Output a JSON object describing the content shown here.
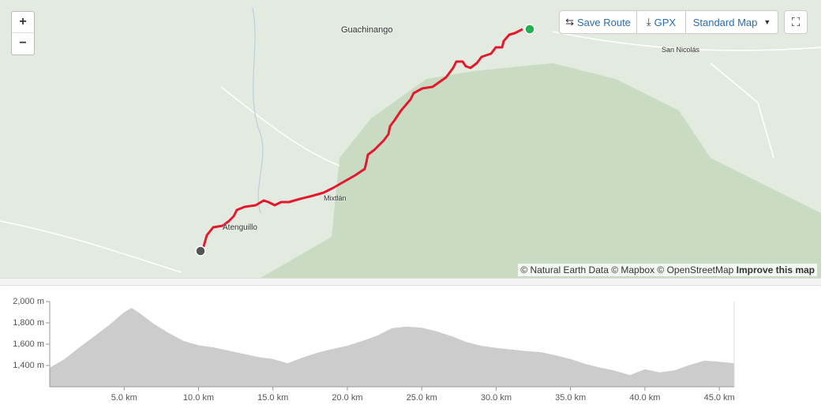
{
  "map": {
    "labels": [
      "Guachinango",
      "San Nicolás",
      "Mixtlán",
      "Atenguillo"
    ],
    "zoom_in": "+",
    "zoom_out": "−",
    "attribution": "© Natural Earth Data © Mapbox © OpenStreetMap",
    "improve": "Improve this map"
  },
  "toolbar": {
    "save_route": "Save Route",
    "gpx": "GPX",
    "map_style": "Standard Map"
  },
  "chart_data": {
    "type": "area",
    "color": "#cccccc",
    "grid": false,
    "x": [
      0,
      1,
      2,
      3,
      4,
      5,
      5.5,
      6,
      7,
      8,
      9,
      10,
      11,
      12,
      13,
      14,
      15,
      16,
      17,
      18,
      19,
      20,
      21,
      22,
      23,
      24,
      25,
      26,
      27,
      28,
      29,
      30,
      31,
      32,
      33,
      34,
      35,
      36,
      37,
      38,
      39,
      40,
      41,
      42,
      43,
      44,
      45,
      46
    ],
    "values": [
      1380,
      1460,
      1570,
      1675,
      1780,
      1900,
      1940,
      1895,
      1790,
      1705,
      1630,
      1590,
      1570,
      1540,
      1510,
      1480,
      1460,
      1420,
      1475,
      1520,
      1555,
      1585,
      1630,
      1680,
      1750,
      1765,
      1755,
      1720,
      1675,
      1620,
      1585,
      1565,
      1550,
      1535,
      1525,
      1495,
      1460,
      1415,
      1380,
      1350,
      1310,
      1365,
      1335,
      1355,
      1405,
      1445,
      1435,
      1420
    ],
    "xlim": [
      0,
      46
    ],
    "ylim": [
      1200,
      2000
    ],
    "xticks": [
      {
        "value": 5,
        "label": "5.0 km"
      },
      {
        "value": 10,
        "label": "10.0 km"
      },
      {
        "value": 15,
        "label": "15.0 km"
      },
      {
        "value": 20,
        "label": "20.0 km"
      },
      {
        "value": 25,
        "label": "25.0 km"
      },
      {
        "value": 30,
        "label": "30.0 km"
      },
      {
        "value": 35,
        "label": "35.0 km"
      },
      {
        "value": 40,
        "label": "40.0 km"
      },
      {
        "value": 45,
        "label": "45.0 km"
      }
    ],
    "yticks": [
      {
        "value": 1400,
        "label": "1,400 m"
      },
      {
        "value": 1600,
        "label": "1,600 m"
      },
      {
        "value": 1800,
        "label": "1,800 m"
      },
      {
        "value": 2000,
        "label": "2,000 m"
      }
    ]
  }
}
